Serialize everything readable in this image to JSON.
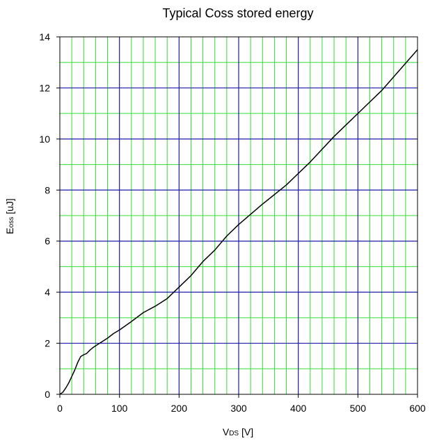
{
  "chart_data": {
    "type": "line",
    "title": "Typical Coss stored energy",
    "xlabel": {
      "main": "V",
      "sub": "DS",
      "unit": " [V]"
    },
    "ylabel": {
      "main": "E",
      "sub": "oss",
      "unit": " [uJ]"
    },
    "xlim": [
      0,
      600
    ],
    "ylim": [
      0,
      14
    ],
    "x_ticks": [
      0,
      100,
      200,
      300,
      400,
      500,
      600
    ],
    "y_ticks": [
      0,
      2,
      4,
      6,
      8,
      10,
      12,
      14
    ],
    "grid": {
      "major_x": 100,
      "major_y": 2,
      "minor_x": 20,
      "minor_y": 1,
      "major_color": "#1a1aa6",
      "minor_color": "#33dd33"
    },
    "series": [
      {
        "color": "#000000",
        "x": [
          0,
          5,
          10,
          15,
          20,
          25,
          30,
          35,
          40,
          45,
          50,
          55,
          60,
          70,
          80,
          90,
          100,
          120,
          140,
          160,
          180,
          200,
          220,
          240,
          260,
          280,
          300,
          340,
          380,
          420,
          460,
          500,
          540,
          570,
          600
        ],
        "y": [
          0,
          0.08,
          0.25,
          0.45,
          0.7,
          0.95,
          1.25,
          1.48,
          1.55,
          1.6,
          1.72,
          1.82,
          1.9,
          2.05,
          2.2,
          2.38,
          2.52,
          2.85,
          3.2,
          3.45,
          3.75,
          4.2,
          4.65,
          5.2,
          5.65,
          6.2,
          6.65,
          7.45,
          8.2,
          9.1,
          10.1,
          11.0,
          11.9,
          12.7,
          13.5
        ]
      }
    ]
  }
}
